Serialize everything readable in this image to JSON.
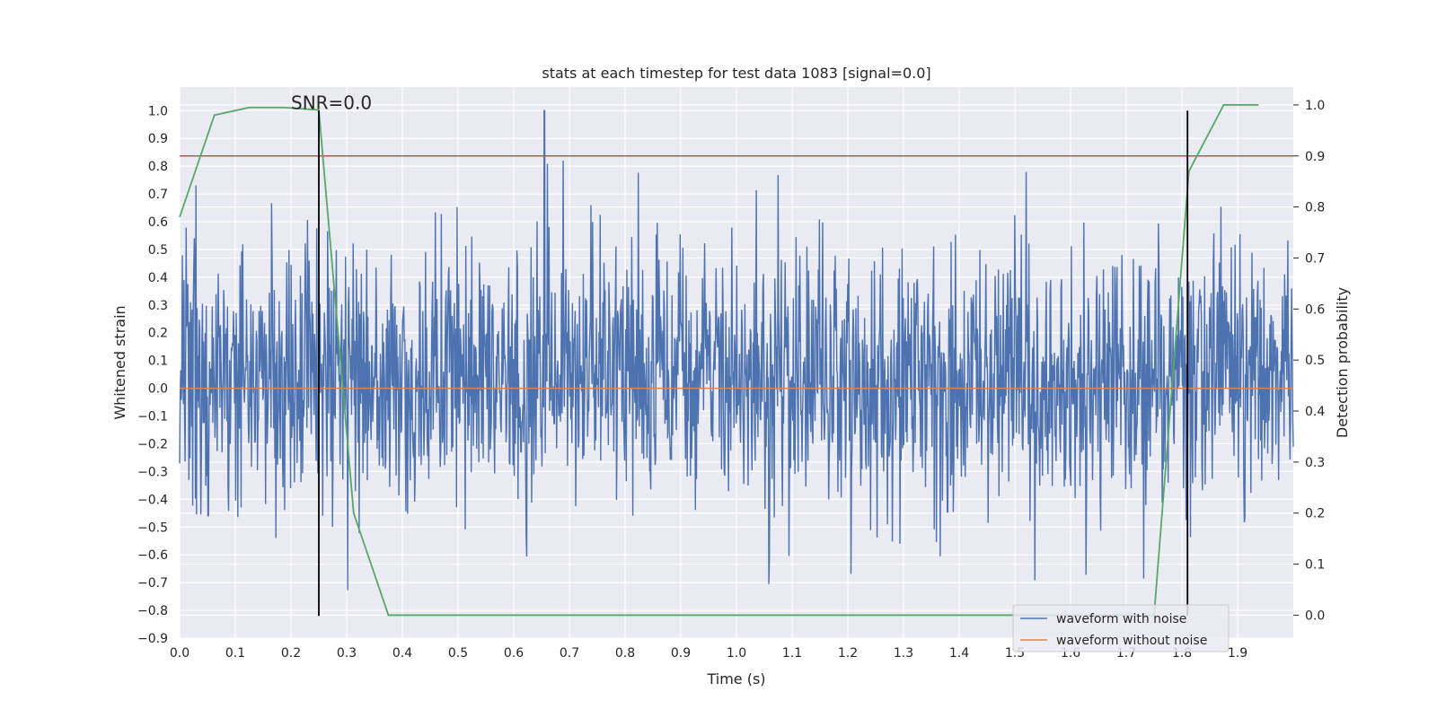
{
  "chart_data": {
    "type": "line",
    "title": "stats at each timestep for test data 1083 [signal=0.0]",
    "xlabel": "Time (s)",
    "ylabel": "Whitened strain",
    "ylabel_right": "Detection probability",
    "xlim": [
      0.0,
      2.0
    ],
    "ylim": [
      -0.9,
      1.085
    ],
    "ylim_right": [
      -0.045,
      1.035
    ],
    "grid": true,
    "x_ticks": [
      0.0,
      0.1,
      0.2,
      0.3,
      0.4,
      0.5,
      0.6,
      0.7,
      0.8,
      0.9,
      1.0,
      1.1,
      1.2,
      1.3,
      1.4,
      1.5,
      1.6,
      1.7,
      1.8,
      1.9
    ],
    "x_tick_labels": [
      "0.0",
      "0.1",
      "0.2",
      "0.3",
      "0.4",
      "0.5",
      "0.6",
      "0.7",
      "0.8",
      "0.9",
      "1.0",
      "1.1",
      "1.2",
      "1.3",
      "1.4",
      "1.5",
      "1.6",
      "1.7",
      "1.8",
      "1.9"
    ],
    "y_ticks": [
      1.0,
      0.9,
      0.8,
      0.7,
      0.6,
      0.5,
      0.4,
      0.3,
      0.2,
      0.1,
      0.0,
      -0.1,
      -0.2,
      -0.3,
      -0.4,
      -0.5,
      -0.6,
      -0.7,
      -0.8,
      -0.9
    ],
    "y_tick_labels": [
      "1.0",
      "0.9",
      "0.8",
      "0.7",
      "0.6",
      "0.5",
      "0.4",
      "0.3",
      "0.2",
      "0.1",
      "0.0",
      "−0.1",
      "−0.2",
      "−0.3",
      "−0.4",
      "−0.5",
      "−0.6",
      "−0.7",
      "−0.8",
      "−0.9"
    ],
    "y_right_ticks": [
      1.0,
      0.9,
      0.8,
      0.7,
      0.6,
      0.5,
      0.4,
      0.3,
      0.2,
      0.1,
      0.0
    ],
    "y_right_tick_labels": [
      "1.0",
      "0.9",
      "0.8",
      "0.7",
      "0.6",
      "0.5",
      "0.4",
      "0.3",
      "0.2",
      "0.1",
      "0.0"
    ],
    "series": [
      {
        "name": "waveform with noise",
        "axis": "left",
        "color": "#4c72b0",
        "x_range": [
          0.0,
          2.0
        ],
        "n_samples": 2048,
        "min": -0.82,
        "max": 1.0,
        "peak_x": 0.655,
        "peak_y": 1.0,
        "note": "whitened noise time series (values estimated)"
      },
      {
        "name": "waveform without noise",
        "axis": "left",
        "color": "#dd8452",
        "x": [
          0.0,
          2.0
        ],
        "y": [
          0.0,
          0.0
        ]
      },
      {
        "name": "detection probability",
        "axis": "right",
        "color": "#55a868",
        "x": [
          0.0,
          0.0625,
          0.125,
          0.1875,
          0.25,
          0.3125,
          0.375,
          0.4375,
          0.5,
          0.5625,
          0.625,
          0.6875,
          0.75,
          0.8125,
          0.875,
          0.9375,
          1.0,
          1.0625,
          1.125,
          1.1875,
          1.25,
          1.3125,
          1.375,
          1.4375,
          1.5,
          1.5625,
          1.625,
          1.6875,
          1.75,
          1.8125,
          1.875,
          1.9375
        ],
        "y": [
          0.78,
          0.98,
          0.995,
          0.995,
          0.99,
          0.2,
          0.0,
          0.0,
          0.0,
          0.0,
          0.0,
          0.0,
          0.0,
          0.0,
          0.0,
          0.0,
          0.0,
          0.0,
          0.0,
          0.0,
          0.0,
          0.0,
          0.0,
          0.0,
          0.0,
          0.0,
          0.0,
          0.0,
          0.0,
          0.87,
          1.0,
          1.0
        ]
      }
    ],
    "threshold": {
      "axis": "right",
      "value": 0.9,
      "color": "#c44e52"
    },
    "vlines": [
      {
        "x": 0.25,
        "y_from": -0.82,
        "y_to": 1.0,
        "color": "#000000"
      },
      {
        "x": 1.81,
        "y_from": -0.82,
        "y_to": 1.0,
        "color": "#000000"
      }
    ],
    "annotation": {
      "text": "SNR=0.0",
      "x": 0.2,
      "y": 1.0
    },
    "legend": {
      "position": "lower-right",
      "entries": [
        {
          "label": "waveform with noise",
          "color": "#4c72b0"
        },
        {
          "label": "waveform without noise",
          "color": "#dd8452"
        }
      ]
    }
  }
}
